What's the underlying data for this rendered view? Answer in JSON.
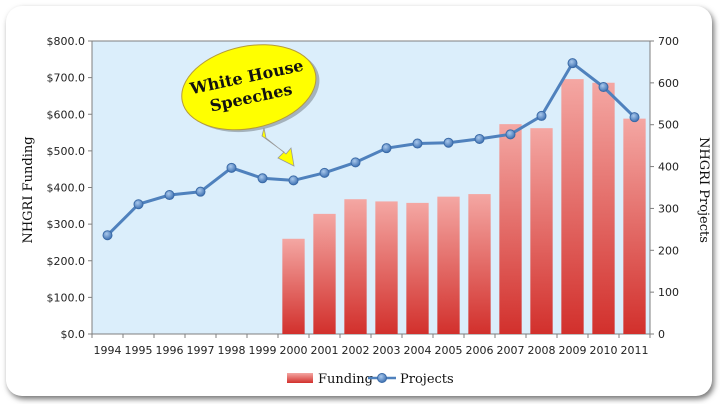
{
  "chart_data": {
    "type": "bar",
    "title": "",
    "categories": [
      "1994",
      "1995",
      "1996",
      "1997",
      "1998",
      "1999",
      "2000",
      "2001",
      "2002",
      "2003",
      "2004",
      "2005",
      "2006",
      "2007",
      "2008",
      "2009",
      "2010",
      "2011"
    ],
    "series": [
      {
        "name": "Funding",
        "type": "bar",
        "axis": "left",
        "color": "#d9413f",
        "values": [
          null,
          null,
          null,
          null,
          null,
          null,
          260,
          328,
          368,
          362,
          358,
          375,
          382,
          573,
          562,
          696,
          686,
          588
        ]
      },
      {
        "name": "Projects",
        "type": "line",
        "axis": "right",
        "color": "#4f81bd",
        "values": [
          236,
          310,
          332,
          340,
          397,
          372,
          367,
          385,
          410,
          444,
          455,
          457,
          466,
          477,
          521,
          647,
          590,
          518
        ]
      }
    ],
    "ylabel": "NHGRI Funding",
    "ylabel_right": "NHGRI Projects",
    "ylim": [
      0,
      800
    ],
    "ylim_right": [
      0,
      700
    ],
    "yticks": [
      "$0.0",
      "$100.0",
      "$200.0",
      "$300.0",
      "$400.0",
      "$500.0",
      "$600.0",
      "$700.0",
      "$800.0"
    ],
    "yticks_right": [
      "0",
      "100",
      "200",
      "300",
      "400",
      "500",
      "600",
      "700"
    ],
    "plot_background": "#dbeefb",
    "grid": false,
    "legend_position": "bottom",
    "annotation": {
      "lines": [
        "White House",
        "Speeches"
      ],
      "fill": "#ffff00",
      "points_to": "2000"
    }
  }
}
